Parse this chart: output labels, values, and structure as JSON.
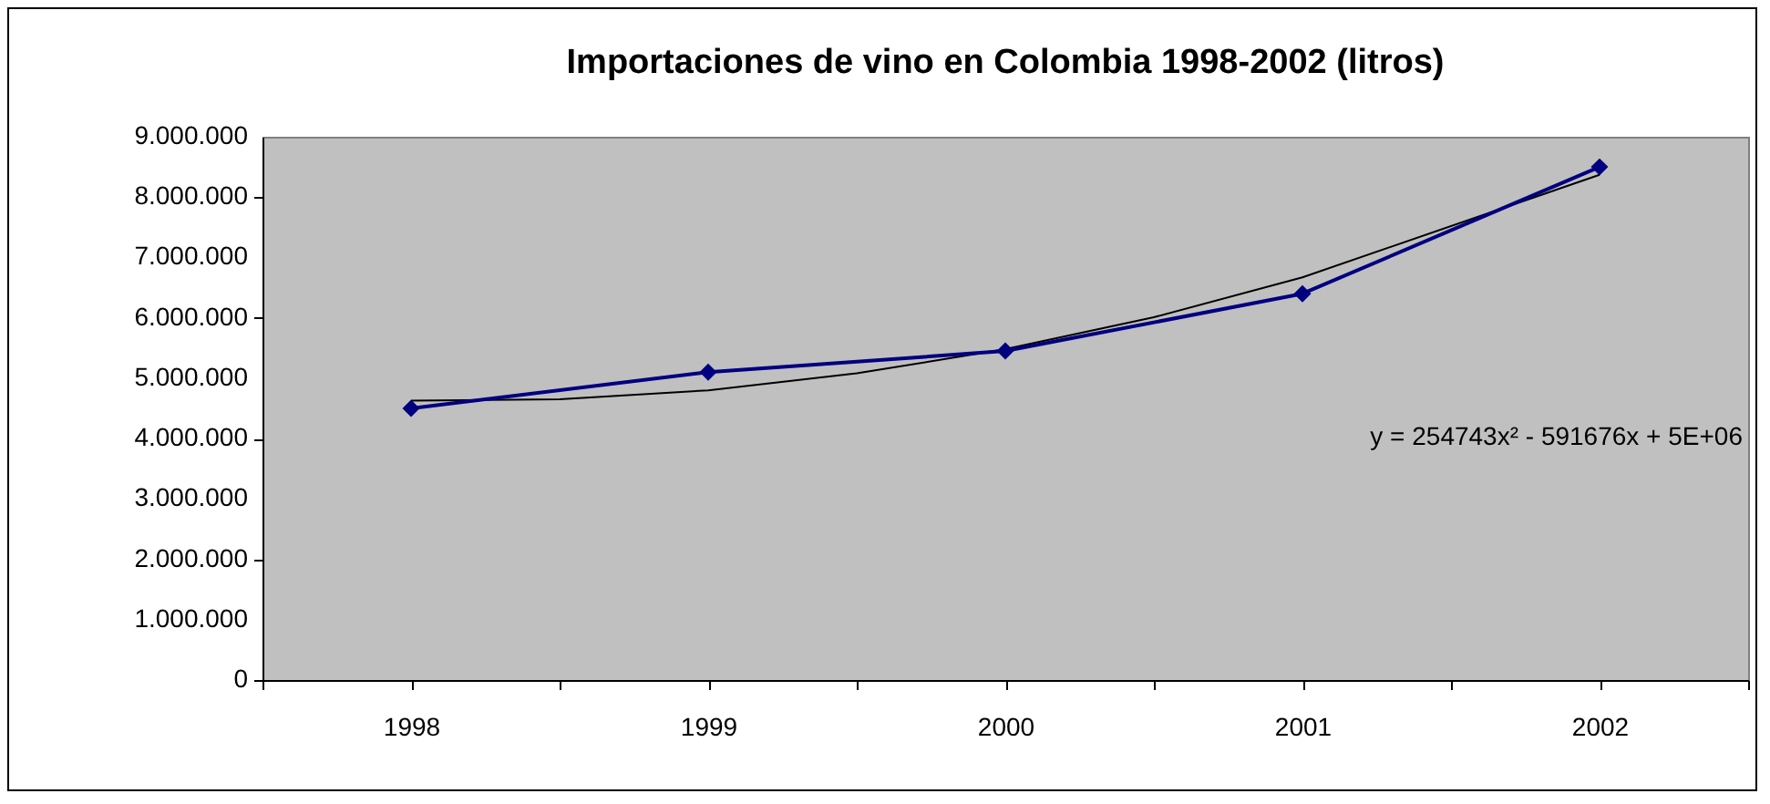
{
  "chart_data": {
    "type": "line",
    "title": "Importaciones de vino en Colombia 1998-2002 (litros)",
    "xlim": [
      1997.5,
      2002.5
    ],
    "xticks": [
      {
        "value": 1997.5,
        "label": null
      },
      1998,
      {
        "value": 1998.5,
        "label": null
      },
      1999,
      {
        "value": 1999.5,
        "label": null
      },
      2000,
      {
        "value": 2000.5,
        "label": null
      },
      2001,
      {
        "value": 2001.5,
        "label": null
      },
      2002,
      {
        "value": 2002.5,
        "label": null
      }
    ],
    "ylim": [
      0,
      9000000
    ],
    "yticks": [
      {
        "value": 0,
        "label": "0"
      },
      {
        "value": 1000000,
        "label": "1.000.000"
      },
      {
        "value": 2000000,
        "label": "2.000.000"
      },
      {
        "value": 3000000,
        "label": "3.000.000"
      },
      {
        "value": 4000000,
        "label": "4.000.000"
      },
      {
        "value": 5000000,
        "label": "5.000.000"
      },
      {
        "value": 6000000,
        "label": "6.000.000"
      },
      {
        "value": 7000000,
        "label": "7.000.000"
      },
      {
        "value": 8000000,
        "label": "8.000.000"
      },
      {
        "value": 9000000,
        "label": "9.000.000"
      }
    ],
    "series": [
      {
        "type": "line",
        "color": "#000000",
        "marker": "none",
        "x": [
          1998,
          1998.5,
          1999,
          1999.5,
          2000,
          2000.5,
          2001,
          2002
        ],
        "values": [
          4630000,
          4650000,
          4800000,
          5080000,
          5480000,
          6010000,
          6670000,
          8370000
        ]
      },
      {
        "type": "line",
        "color": "#000080",
        "marker": "diamond",
        "x": [
          1998,
          1999,
          2000,
          2001,
          2002
        ],
        "values": [
          4500000,
          5100000,
          5450000,
          6400000,
          8500000
        ]
      }
    ],
    "annotations": [
      "y = 254743x² - 591676x + 5E+06"
    ],
    "grid": false,
    "line_style": "solid"
  }
}
